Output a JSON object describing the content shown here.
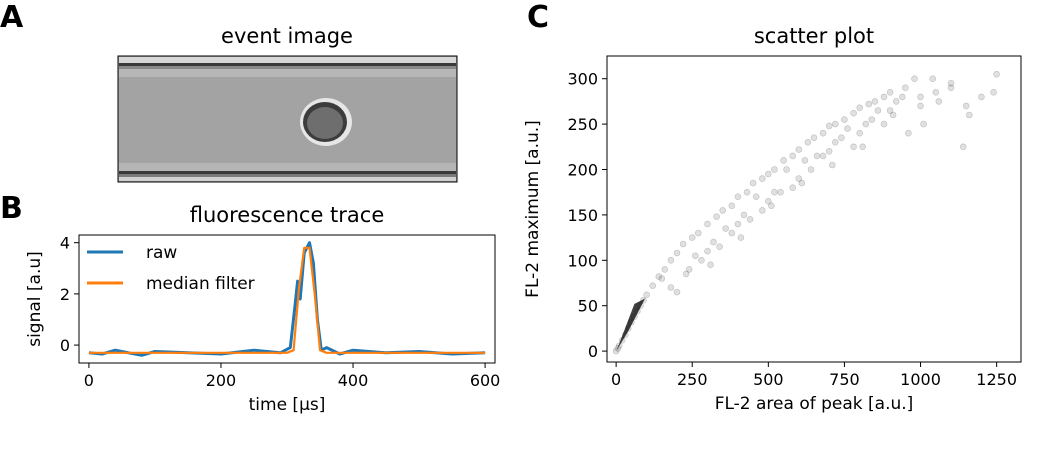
{
  "panels": {
    "a": {
      "letter": "A",
      "title": "event image"
    },
    "b": {
      "letter": "B",
      "title": "fluorescence trace"
    },
    "c": {
      "letter": "C",
      "title": "scatter plot"
    }
  },
  "colors": {
    "raw": "#1f77b4",
    "median": "#ff7f0e",
    "scatter": "#000000",
    "axes": "#000000"
  },
  "chart_data": [
    {
      "type": "line",
      "title": "fluorescence trace",
      "xlabel": "time [µs]",
      "ylabel": "signal [a.u]",
      "xlim": [
        -15,
        615
      ],
      "ylim": [
        -0.7,
        4.3
      ],
      "xticks": [
        0,
        200,
        400,
        600
      ],
      "yticks": [
        0,
        2,
        4
      ],
      "legend": "top-left",
      "grid": false,
      "series": [
        {
          "name": "raw",
          "x": [
            0,
            20,
            40,
            60,
            80,
            100,
            150,
            200,
            250,
            290,
            305,
            312,
            316,
            320,
            326,
            334,
            340,
            346,
            352,
            360,
            380,
            400,
            450,
            500,
            550,
            600
          ],
          "y": [
            -0.3,
            -0.35,
            -0.2,
            -0.3,
            -0.4,
            -0.25,
            -0.3,
            -0.35,
            -0.2,
            -0.3,
            -0.1,
            1.5,
            2.5,
            1.8,
            3.6,
            4.0,
            3.2,
            1.0,
            -0.2,
            -0.1,
            -0.35,
            -0.2,
            -0.3,
            -0.25,
            -0.35,
            -0.3
          ]
        },
        {
          "name": "median filter",
          "x": [
            0,
            50,
            100,
            150,
            200,
            250,
            300,
            310,
            318,
            326,
            334,
            342,
            350,
            360,
            400,
            450,
            500,
            550,
            600
          ],
          "y": [
            -0.3,
            -0.3,
            -0.3,
            -0.3,
            -0.3,
            -0.3,
            -0.3,
            -0.2,
            2.2,
            3.8,
            3.8,
            2.0,
            -0.2,
            -0.3,
            -0.3,
            -0.3,
            -0.3,
            -0.3,
            -0.3
          ]
        }
      ]
    },
    {
      "type": "scatter",
      "title": "scatter plot",
      "xlabel": "FL-2 area of peak [a.u.]",
      "ylabel": "FL-2 maximum [a.u.]",
      "xlim": [
        -30,
        1330
      ],
      "ylim": [
        -12,
        325
      ],
      "xticks": [
        0,
        250,
        500,
        750,
        1000,
        1250
      ],
      "yticks": [
        0,
        50,
        100,
        150,
        200,
        250,
        300
      ],
      "grid": false,
      "series": [
        {
          "x": [
            0,
            5,
            10,
            20,
            30,
            40,
            50,
            60,
            70,
            80,
            90,
            100,
            120,
            140,
            160,
            180,
            200,
            220,
            250,
            270,
            300,
            330,
            350,
            380,
            400,
            430,
            450,
            480,
            500,
            520,
            550,
            580,
            600,
            630,
            650,
            680,
            700,
            720,
            750,
            780,
            800,
            830,
            850,
            880,
            900,
            950,
            1000,
            1050,
            1100,
            1150,
            1200,
            1250,
            180,
            240,
            320,
            420,
            520,
            620,
            720,
            820,
            920,
            300,
            400,
            500,
            600,
            700,
            800,
            900,
            1000,
            1100,
            150,
            260,
            360,
            460,
            560,
            660,
            760,
            860,
            960,
            1060,
            1160,
            200,
            310,
            410,
            510,
            610,
            710,
            810,
            910,
            1010,
            230,
            340,
            440,
            540,
            640,
            740,
            840,
            940,
            1040,
            1140,
            1240,
            280,
            380,
            480,
            580,
            680,
            780,
            880,
            980
          ],
          "y": [
            0,
            3,
            6,
            12,
            18,
            25,
            32,
            38,
            44,
            50,
            56,
            62,
            72,
            82,
            90,
            100,
            108,
            118,
            125,
            130,
            140,
            148,
            155,
            160,
            170,
            175,
            185,
            190,
            195,
            200,
            210,
            215,
            222,
            230,
            235,
            240,
            248,
            250,
            255,
            262,
            268,
            272,
            275,
            280,
            285,
            290,
            280,
            285,
            290,
            270,
            280,
            305,
            70,
            90,
            120,
            150,
            175,
            210,
            230,
            250,
            275,
            110,
            140,
            165,
            190,
            220,
            240,
            265,
            270,
            295,
            80,
            105,
            135,
            170,
            200,
            215,
            245,
            265,
            240,
            275,
            260,
            65,
            95,
            125,
            160,
            185,
            205,
            225,
            260,
            250,
            85,
            115,
            145,
            175,
            200,
            235,
            255,
            280,
            300,
            225,
            285,
            100,
            130,
            155,
            180,
            215,
            225,
            250,
            300
          ]
        }
      ]
    }
  ]
}
